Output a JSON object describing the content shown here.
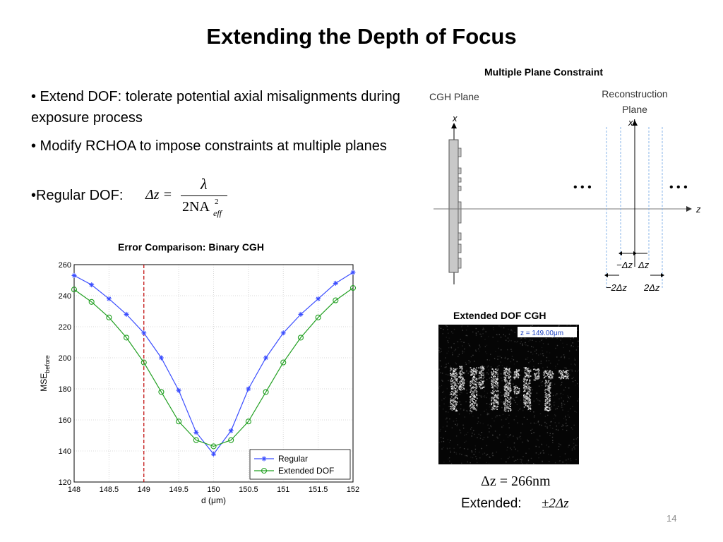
{
  "slide": {
    "title": "Extending the Depth of Focus",
    "number": "14"
  },
  "bullets": [
    "• Extend DOF: tolerate potential axial misalignments during exposure process",
    "• Modify RCHOA to impose constraints at multiple planes",
    "•Regular DOF:"
  ],
  "formula_regular": {
    "lhs": "Δz =",
    "numerator": "λ",
    "denominator_main": "2NA",
    "denominator_sup": "2",
    "denominator_sub": "eff"
  },
  "diagram": {
    "caption": "Multiple Plane Constraint",
    "cgh_plane_label": "CGH Plane",
    "recon_plane_label_1": "Reconstruction",
    "recon_plane_label_2": "Plane",
    "x_label": "x",
    "xprime_label": "x'",
    "z_label": "z",
    "dots_left": "• • •",
    "dots_right": "• • •",
    "minus_dz": "−Δz",
    "dz": "Δz",
    "minus_2dz": "−2Δz",
    "two_dz": "2Δz"
  },
  "image_panel": {
    "caption": "Extended DOF CGH",
    "z_readout": "z = 149.00μm",
    "dz_value": "Δz = 266nm",
    "extended_label": "Extended:",
    "extended_value": "±2Δz"
  },
  "chart_data": {
    "type": "line",
    "title": "Error Comparison: Binary CGH",
    "xlabel": "d (μm)",
    "ylabel": "MSE",
    "ylabel_sub": "before",
    "xlim": [
      148,
      152
    ],
    "ylim": [
      120,
      260
    ],
    "xticks": [
      148,
      148.5,
      149,
      149.5,
      150,
      150.5,
      151,
      151.5,
      152
    ],
    "yticks": [
      120,
      140,
      160,
      180,
      200,
      220,
      240,
      260
    ],
    "grid": true,
    "legend_position": "bottom-right",
    "reference_line_x": 149,
    "x": [
      148,
      148.25,
      148.5,
      148.75,
      149,
      149.25,
      149.5,
      149.75,
      150,
      150.25,
      150.5,
      150.75,
      151,
      151.25,
      151.5,
      151.75,
      152
    ],
    "series": [
      {
        "name": "Regular",
        "color": "#3a4dff",
        "marker": "star",
        "values": [
          253,
          247,
          238,
          228,
          216,
          200,
          179,
          152,
          138,
          153,
          180,
          200,
          216,
          228,
          238,
          248,
          255
        ]
      },
      {
        "name": "Extended DOF",
        "color": "#22a022",
        "marker": "circle",
        "values": [
          244,
          236,
          226,
          213,
          197,
          178,
          159,
          147,
          143,
          147,
          159,
          178,
          197,
          213,
          226,
          237,
          245
        ]
      }
    ]
  }
}
